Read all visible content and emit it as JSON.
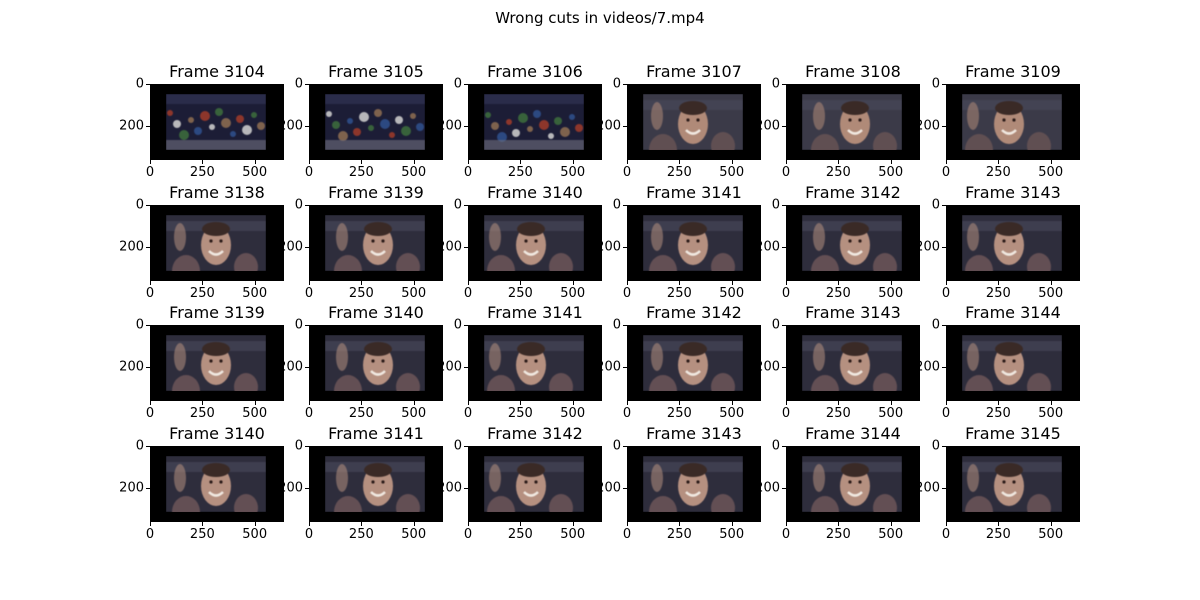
{
  "figure": {
    "title": "Wrong cuts in videos/7.mp4"
  },
  "axes": {
    "x_ticks": [
      "0",
      "250",
      "500"
    ],
    "y_ticks": [
      "0",
      "200"
    ]
  },
  "scenes": {
    "crowd": {
      "bg": "#1c1d36",
      "accents": [
        "#2f4f8a",
        "#9a3a2a",
        "#c9c9c9",
        "#3c6a3c",
        "#8a6a50"
      ]
    },
    "face_blur": {
      "bg": "#3b3a48",
      "skin": "#b08a78",
      "shade": "#6a5555"
    },
    "face_smile": {
      "bg": "#2e2d3c",
      "skin": "#b59080",
      "shade": "#70585a"
    }
  },
  "rows": [
    [
      {
        "title": "Frame 3104",
        "scene": "crowd"
      },
      {
        "title": "Frame 3105",
        "scene": "crowd"
      },
      {
        "title": "Frame 3106",
        "scene": "crowd"
      },
      {
        "title": "Frame 3107",
        "scene": "face_blur"
      },
      {
        "title": "Frame 3108",
        "scene": "face_blur"
      },
      {
        "title": "Frame 3109",
        "scene": "face_blur"
      }
    ],
    [
      {
        "title": "Frame 3138",
        "scene": "face_smile"
      },
      {
        "title": "Frame 3139",
        "scene": "face_smile"
      },
      {
        "title": "Frame 3140",
        "scene": "face_smile"
      },
      {
        "title": "Frame 3141",
        "scene": "face_smile"
      },
      {
        "title": "Frame 3142",
        "scene": "face_smile"
      },
      {
        "title": "Frame 3143",
        "scene": "face_smile"
      }
    ],
    [
      {
        "title": "Frame 3139",
        "scene": "face_smile"
      },
      {
        "title": "Frame 3140",
        "scene": "face_smile"
      },
      {
        "title": "Frame 3141",
        "scene": "face_smile"
      },
      {
        "title": "Frame 3142",
        "scene": "face_smile"
      },
      {
        "title": "Frame 3143",
        "scene": "face_smile"
      },
      {
        "title": "Frame 3144",
        "scene": "face_smile"
      }
    ],
    [
      {
        "title": "Frame 3140",
        "scene": "face_smile"
      },
      {
        "title": "Frame 3141",
        "scene": "face_smile"
      },
      {
        "title": "Frame 3142",
        "scene": "face_smile"
      },
      {
        "title": "Frame 3143",
        "scene": "face_smile"
      },
      {
        "title": "Frame 3144",
        "scene": "face_smile"
      },
      {
        "title": "Frame 3145",
        "scene": "face_smile"
      }
    ]
  ]
}
